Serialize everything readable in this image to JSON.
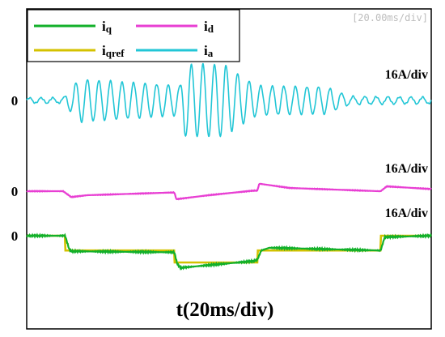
{
  "chart_data": {
    "type": "line",
    "timebase": "[20.00ms/div]",
    "xlabel": "t(20ms/div)",
    "x_divisions": 10,
    "y_divisions": 8,
    "grid": false,
    "legend": {
      "placement": "top-left",
      "entries": [
        {
          "label": "iq",
          "color": "#12b02a"
        },
        {
          "label": "id",
          "color": "#e83fd3"
        },
        {
          "label": "iqref",
          "color": "#d4c200"
        },
        {
          "label": "ia",
          "color": "#22c6d6"
        }
      ]
    },
    "channels": [
      {
        "name": "ia",
        "scale_label": "16A/div",
        "zero_label": "0",
        "color": "#22c6d6",
        "envelope": {
          "t_div": [
            0,
            0.9,
            1.1,
            1.3,
            3.8,
            3.9,
            4.9,
            5.0,
            5.7,
            7.4,
            8.0,
            10
          ],
          "amp_div": [
            0.1,
            0.1,
            0.45,
            0.8,
            0.55,
            1.35,
            1.35,
            1.2,
            0.55,
            0.5,
            0.15,
            0.12
          ]
        },
        "cycles_per_div": 3.5
      },
      {
        "name": "id",
        "scale_label": "16A/div",
        "zero_label": "0",
        "color": "#e83fd3",
        "points": {
          "t_div": [
            0,
            0.9,
            1.1,
            1.5,
            3.6,
            3.65,
            3.7,
            4.5,
            5.6,
            5.7,
            5.75,
            6.5,
            8.7,
            8.75,
            8.9,
            10
          ],
          "v_div": [
            0,
            0,
            -0.22,
            -0.15,
            -0.05,
            -0.05,
            -0.3,
            -0.15,
            0.02,
            0.02,
            0.28,
            0.12,
            0.0,
            0.0,
            0.18,
            0.08
          ]
        }
      },
      {
        "name": "iqref",
        "scale_label": "16A/div",
        "zero_label": "0",
        "color": "#d4c200",
        "points": {
          "t_div": [
            0,
            0.95,
            0.95,
            3.65,
            3.65,
            5.7,
            5.7,
            8.75,
            8.75,
            10
          ],
          "v_div": [
            0,
            0,
            -0.55,
            -0.55,
            -1.0,
            -1.0,
            -0.55,
            -0.55,
            0,
            0
          ]
        }
      },
      {
        "name": "iq",
        "scale_label": "",
        "zero_label": "",
        "color": "#12b02a",
        "points": {
          "t_div": [
            0,
            0.95,
            1.05,
            1.1,
            3.65,
            3.72,
            3.8,
            4.5,
            5.6,
            5.7,
            5.8,
            6.0,
            8.7,
            8.75,
            8.85,
            10
          ],
          "v_div": [
            0,
            0,
            -0.5,
            -0.58,
            -0.62,
            -1.05,
            -1.2,
            -1.1,
            -0.95,
            -0.9,
            -0.55,
            -0.45,
            -0.55,
            -0.55,
            -0.05,
            0
          ]
        }
      }
    ]
  }
}
